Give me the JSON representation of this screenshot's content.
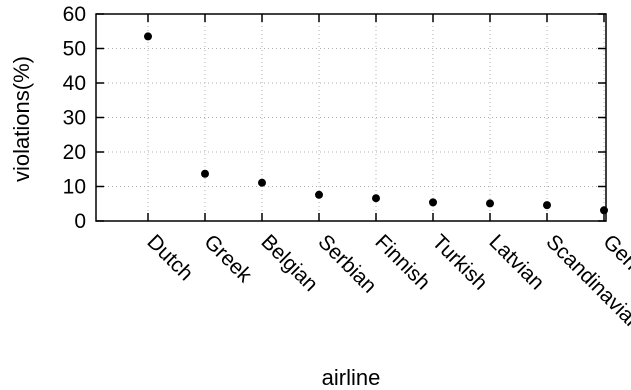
{
  "chart_data": {
    "type": "scatter",
    "title": "",
    "xlabel": "airline",
    "ylabel": "violations(%)",
    "categories": [
      "Dutch",
      "Greek",
      "Belgian",
      "Serbian",
      "Finnish",
      "Turkish",
      "Latvian",
      "Scandinavian",
      "German"
    ],
    "values": [
      53.5,
      13.7,
      11.1,
      7.6,
      6.6,
      5.4,
      5.1,
      4.6,
      3.1
    ],
    "ylim": [
      0,
      60
    ],
    "yticks": [
      "0",
      "10",
      "20",
      "30",
      "40",
      "50",
      "60"
    ],
    "grid": true,
    "legend": "none",
    "marker_color": "#000000"
  }
}
